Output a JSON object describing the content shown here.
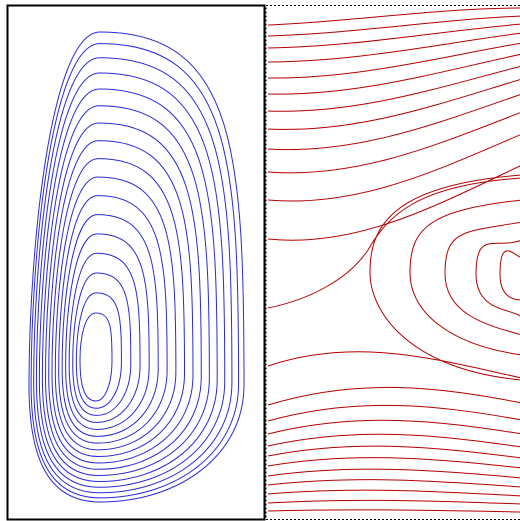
{
  "figure": {
    "left_panel": {
      "kind": "closed-contours",
      "stroke": "#2a2ad6",
      "count": 17
    },
    "right_panel": {
      "kind": "open-contours",
      "stroke": "#b30000",
      "count": 30
    },
    "frame": {
      "stroke": "#000000"
    },
    "right_frame": {
      "stroke": "#000000",
      "dashed": true
    }
  }
}
